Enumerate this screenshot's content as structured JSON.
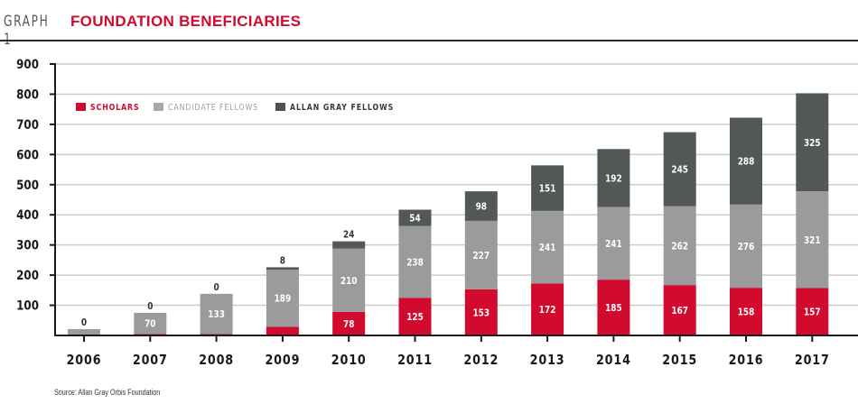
{
  "header": {
    "graph_number": "GRAPH 1",
    "title": "FOUNDATION BENEFICIARIES"
  },
  "source": "Source: Allan Gray Orbis Foundation",
  "colors": {
    "scholars": "#d20a2e",
    "candidate_fellows": "#9b9b9b",
    "allan_gray_fellows": "#525758",
    "title": "#d20a2e",
    "gridline": "#cccccc",
    "axis": "#1a1a1a"
  },
  "chart_data": {
    "type": "bar",
    "stacked": true,
    "title": "FOUNDATION BENEFICIARIES",
    "xlabel": "",
    "ylabel": "",
    "ylim": [
      0,
      900
    ],
    "yticks": [
      100,
      200,
      300,
      400,
      500,
      600,
      700,
      800,
      900
    ],
    "grid": true,
    "legend_position": "top-left",
    "categories": [
      "2006",
      "2007",
      "2008",
      "2009",
      "2010",
      "2011",
      "2012",
      "2013",
      "2014",
      "2015",
      "2016",
      "2017"
    ],
    "series": [
      {
        "name": "SCHOLARS",
        "key": "scholars",
        "values": [
          0,
          5,
          5,
          29,
          78,
          125,
          153,
          172,
          185,
          167,
          158,
          157
        ],
        "labels": [
          null,
          null,
          null,
          null,
          "78",
          "125",
          "153",
          "172",
          "185",
          "167",
          "158",
          "157"
        ]
      },
      {
        "name": "CANDIDATE FELLOWS",
        "key": "candidate_fellows",
        "values": [
          21,
          70,
          133,
          189,
          210,
          238,
          227,
          241,
          241,
          262,
          276,
          321
        ],
        "labels": [
          null,
          "70",
          "133",
          "189",
          "210",
          "238",
          "227",
          "241",
          "241",
          "262",
          "276",
          "321"
        ]
      },
      {
        "name": "ALLAN GRAY FELLOWS",
        "key": "allan_gray_fellows",
        "values": [
          0,
          0,
          0,
          8,
          24,
          54,
          98,
          151,
          192,
          245,
          288,
          325
        ],
        "labels": [
          "0",
          "0",
          "0",
          "8",
          "24",
          "54",
          "98",
          "151",
          "192",
          "245",
          "288",
          "325"
        ]
      }
    ]
  }
}
